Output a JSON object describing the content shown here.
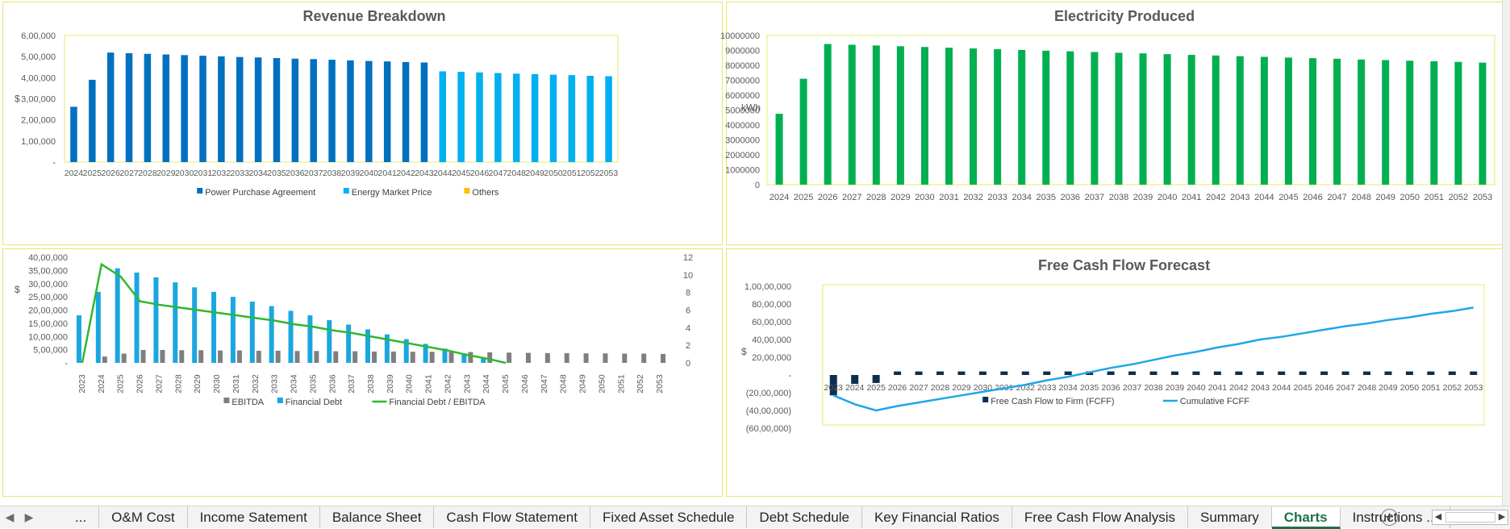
{
  "charts": [
    {
      "type": "bar",
      "title": "Revenue Breakdown",
      "ylabel": "$",
      "ylim": [
        0,
        600000
      ],
      "yticks": [
        "-",
        "1,00,000",
        "2,00,000",
        "3,00,000",
        "4,00,000",
        "5,00,000",
        "6,00,000"
      ],
      "categories": [
        "2024",
        "2025",
        "2026",
        "2027",
        "2028",
        "2029",
        "2030",
        "2031",
        "2032",
        "2033",
        "2034",
        "2035",
        "2036",
        "2037",
        "2038",
        "2039",
        "2040",
        "2041",
        "2042",
        "2043",
        "2044",
        "2045",
        "2046",
        "2047",
        "2048",
        "2049",
        "2050",
        "2051",
        "2052",
        "2053"
      ],
      "series": [
        {
          "name": "Power Purchase Agreement",
          "color": "#0070c0",
          "values": [
            262000,
            390000,
            519000,
            516000,
            513000,
            510000,
            507000,
            504000,
            501000,
            498000,
            496000,
            493000,
            490000,
            488000,
            485000,
            482000,
            479000,
            477000,
            474000,
            472000,
            0,
            0,
            0,
            0,
            0,
            0,
            0,
            0,
            0,
            0
          ]
        },
        {
          "name": "Energy Market Price",
          "color": "#00b0f0",
          "values": [
            0,
            0,
            0,
            0,
            0,
            0,
            0,
            0,
            0,
            0,
            0,
            0,
            0,
            0,
            0,
            0,
            0,
            0,
            0,
            0,
            430000,
            428000,
            425000,
            422000,
            419000,
            417000,
            414000,
            412000,
            409000,
            407000
          ]
        },
        {
          "name": "Others",
          "color": "#ffc000",
          "values": [
            0,
            0,
            0,
            0,
            0,
            0,
            0,
            0,
            0,
            0,
            0,
            0,
            0,
            0,
            0,
            0,
            0,
            0,
            0,
            0,
            0,
            0,
            0,
            0,
            0,
            0,
            0,
            0,
            0,
            0
          ]
        }
      ]
    },
    {
      "type": "bar",
      "title": "Electricity Produced",
      "ylabel": "kWh",
      "ylim": [
        0,
        10000000
      ],
      "yticks": [
        "0",
        "1000000",
        "2000000",
        "3000000",
        "4000000",
        "5000000",
        "6000000",
        "7000000",
        "8000000",
        "9000000",
        "10000000"
      ],
      "categories": [
        "2024",
        "2025",
        "2026",
        "2027",
        "2028",
        "2029",
        "2030",
        "2031",
        "2032",
        "2033",
        "2034",
        "2035",
        "2036",
        "2037",
        "2038",
        "2039",
        "2040",
        "2041",
        "2042",
        "2043",
        "2044",
        "2045",
        "2046",
        "2047",
        "2048",
        "2049",
        "2050",
        "2051",
        "2052",
        "2053"
      ],
      "series": [
        {
          "name": "",
          "color": "#00b050",
          "values": [
            4750000,
            7100000,
            9430000,
            9380000,
            9330000,
            9280000,
            9230000,
            9180000,
            9130000,
            9080000,
            9030000,
            8980000,
            8940000,
            8890000,
            8840000,
            8800000,
            8750000,
            8700000,
            8660000,
            8610000,
            8570000,
            8520000,
            8480000,
            8440000,
            8390000,
            8350000,
            8310000,
            8270000,
            8230000,
            8180000
          ]
        }
      ]
    },
    {
      "type": "bar+line",
      "title": "",
      "ylabel": "$",
      "ylim": [
        0,
        4000000
      ],
      "y2lim": [
        0,
        12
      ],
      "yticks": [
        "-",
        "5,00,000",
        "10,00,000",
        "15,00,000",
        "20,00,000",
        "25,00,000",
        "30,00,000",
        "35,00,000",
        "40,00,000"
      ],
      "y2ticks": [
        "0",
        "2",
        "4",
        "6",
        "8",
        "10",
        "12"
      ],
      "categories": [
        "2023",
        "2024",
        "2025",
        "2026",
        "2027",
        "2028",
        "2029",
        "2030",
        "2031",
        "2032",
        "2033",
        "2034",
        "2035",
        "2036",
        "2037",
        "2038",
        "2039",
        "2040",
        "2041",
        "2042",
        "2043",
        "2044",
        "2045",
        "2046",
        "2047",
        "2048",
        "2049",
        "2050",
        "2051",
        "2052",
        "2053"
      ],
      "series": [
        {
          "name": "EBITDA",
          "color": "#7f7f7f",
          "kind": "bar",
          "values": [
            0,
            240000,
            350000,
            490000,
            490000,
            480000,
            480000,
            470000,
            470000,
            460000,
            460000,
            450000,
            450000,
            440000,
            440000,
            430000,
            430000,
            420000,
            420000,
            410000,
            410000,
            400000,
            390000,
            380000,
            370000,
            370000,
            360000,
            360000,
            350000,
            350000,
            340000
          ]
        },
        {
          "name": "Financial Debt",
          "color": "#1aa7e0",
          "kind": "bar",
          "values": [
            1800000,
            2690000,
            3580000,
            3420000,
            3240000,
            3050000,
            2860000,
            2690000,
            2500000,
            2320000,
            2150000,
            1970000,
            1800000,
            1620000,
            1450000,
            1270000,
            1080000,
            900000,
            720000,
            540000,
            360000,
            180000,
            0,
            0,
            0,
            0,
            0,
            0,
            0,
            0,
            0
          ]
        },
        {
          "name": "Financial Debt / EBITDA",
          "color": "#2eb82e",
          "kind": "line",
          "values": [
            0,
            11.2,
            9.8,
            7.0,
            6.6,
            6.3,
            6.0,
            5.7,
            5.4,
            5.1,
            4.8,
            4.4,
            4.1,
            3.7,
            3.4,
            3.0,
            2.6,
            2.2,
            1.8,
            1.4,
            0.9,
            0.5,
            0,
            0,
            0,
            0,
            0,
            0,
            0,
            0,
            0
          ]
        }
      ]
    },
    {
      "type": "bar+line",
      "title": "Free Cash Flow Forecast",
      "ylabel": "$",
      "ylim": [
        -6000000,
        10000000
      ],
      "yticks": [
        "(60,00,000)",
        "(40,00,000)",
        "(20,00,000)",
        "-",
        "20,00,000",
        "40,00,000",
        "60,00,000",
        "80,00,000",
        "1,00,00,000"
      ],
      "categories": [
        "2023",
        "2024",
        "2025",
        "2026",
        "2027",
        "2028",
        "2029",
        "2030",
        "2031",
        "2032",
        "2033",
        "2034",
        "2035",
        "2036",
        "2037",
        "2038",
        "2039",
        "2040",
        "2041",
        "2042",
        "2043",
        "2044",
        "2045",
        "2046",
        "2047",
        "2048",
        "2049",
        "2050",
        "2051",
        "2052",
        "2053"
      ],
      "series": [
        {
          "name": "Free Cash Flow to Firm (FCFF)",
          "color": "#0d2f4f",
          "kind": "bar",
          "values": [
            -2300000,
            -1000000,
            -900000,
            400000,
            400000,
            400000,
            400000,
            400000,
            400000,
            400000,
            400000,
            400000,
            400000,
            400000,
            400000,
            400000,
            400000,
            400000,
            400000,
            400000,
            400000,
            400000,
            400000,
            400000,
            400000,
            400000,
            400000,
            400000,
            400000,
            400000,
            400000
          ]
        },
        {
          "name": "Cumulative FCFF",
          "color": "#1ea7e8",
          "kind": "line",
          "values": [
            -2300000,
            -3300000,
            -4000000,
            -3500000,
            -3100000,
            -2700000,
            -2300000,
            -1900000,
            -1500000,
            -1100000,
            -600000,
            -200000,
            300000,
            800000,
            1200000,
            1700000,
            2200000,
            2600000,
            3100000,
            3500000,
            4000000,
            4300000,
            4700000,
            5100000,
            5500000,
            5800000,
            6200000,
            6500000,
            6900000,
            7200000,
            7600000
          ]
        }
      ]
    }
  ],
  "sheet_tabs": [
    "...",
    "O&M Cost",
    "Income Satement",
    "Balance Sheet",
    "Cash Flow Statement",
    "Fixed Asset Schedule",
    "Debt Schedule",
    "Key Financial Ratios",
    "Free Cash Flow Analysis",
    "Summary",
    "Charts",
    "Instructions ..."
  ],
  "active_tab": "Charts",
  "icons": {
    "prev_sheet": "triangle-left-icon",
    "next_sheet": "triangle-right-icon",
    "add_sheet": "plus-circle-icon"
  }
}
